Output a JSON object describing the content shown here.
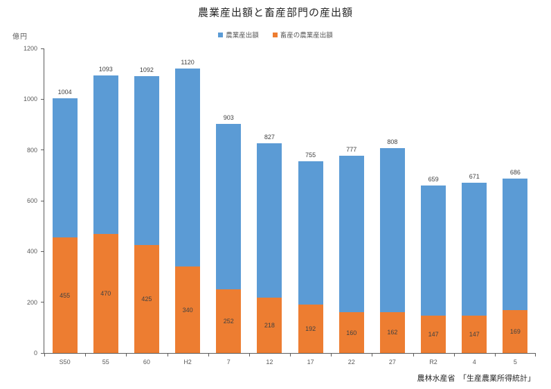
{
  "title": "農業産出額と畜産部門の産出額",
  "y_axis_unit": "億円",
  "source": "農林水産省　「生産農業所得統計」",
  "colors": {
    "series_agriculture": "#5B9BD5",
    "series_livestock": "#ED7D31",
    "axis": "#595959",
    "data_label": "#404040",
    "title_text": "#262626"
  },
  "chart_data": {
    "type": "bar",
    "subtype": "overlapped-columns",
    "title": "農業産出額と畜産部門の産出額",
    "xlabel": "",
    "ylabel": "億円",
    "ylim": [
      0,
      1200
    ],
    "ytick_step": 200,
    "ytick_labels": [
      "0",
      "200",
      "400",
      "600",
      "800",
      "1000",
      "1200"
    ],
    "grid": false,
    "legend_position": "top",
    "categories": [
      "S50",
      "55",
      "60",
      "H2",
      "7",
      "12",
      "17",
      "22",
      "27",
      "R2",
      "4",
      "5"
    ],
    "series": [
      {
        "name": "農業産出額",
        "color": "#5B9BD5",
        "values": [
          1004,
          1093,
          1092,
          1120,
          903,
          827,
          755,
          777,
          808,
          659,
          671,
          686
        ],
        "label_position": "outside-end"
      },
      {
        "name": "畜産の農業産出額",
        "color": "#ED7D31",
        "values": [
          455,
          470,
          425,
          340,
          252,
          218,
          192,
          160,
          162,
          147,
          147,
          169
        ],
        "label_position": "center"
      }
    ],
    "source_note": "農林水産省　「生産農業所得統計」"
  }
}
